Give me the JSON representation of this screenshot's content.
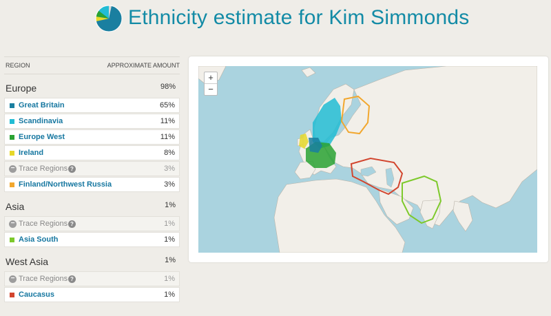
{
  "header": {
    "title": "Ethnicity estimate for Kim Simmonds"
  },
  "table": {
    "col_region": "REGION",
    "col_amount": "APPROXIMATE AMOUNT",
    "groups": [
      {
        "name": "Europe",
        "amount": "98%",
        "items": [
          {
            "label": "Great Britain",
            "amount": "65%",
            "color": "#1a7fa0"
          },
          {
            "label": "Scandinavia",
            "amount": "11%",
            "color": "#22bcd4"
          },
          {
            "label": "Europe West",
            "amount": "11%",
            "color": "#2aa233"
          },
          {
            "label": "Ireland",
            "amount": "8%",
            "color": "#e6d82a"
          }
        ],
        "trace": {
          "label": "Trace Regions",
          "amount": "3%"
        },
        "trace_items": [
          {
            "label": "Finland/Northwest Russia",
            "amount": "3%",
            "color": "#f2a72e"
          }
        ]
      },
      {
        "name": "Asia",
        "amount": "1%",
        "trace": {
          "label": "Trace Regions",
          "amount": "1%"
        },
        "trace_items": [
          {
            "label": "Asia South",
            "amount": "1%",
            "color": "#7dc92b"
          }
        ]
      },
      {
        "name": "West Asia",
        "amount": "1%",
        "trace": {
          "label": "Trace Regions",
          "amount": "1%"
        },
        "trace_items": [
          {
            "label": "Caucasus",
            "amount": "1%",
            "color": "#d2452e"
          }
        ]
      }
    ]
  },
  "map": {
    "zoom_in": "+",
    "zoom_out": "−"
  },
  "icons": {
    "trace_collapse": "minus-circle-icon",
    "trace_help": "question-circle-icon",
    "logo": "pie-chart-icon"
  },
  "colors": {
    "accent": "#138ba6",
    "background": "#efede8",
    "water": "#aad3df",
    "land": "#f2efe9"
  }
}
